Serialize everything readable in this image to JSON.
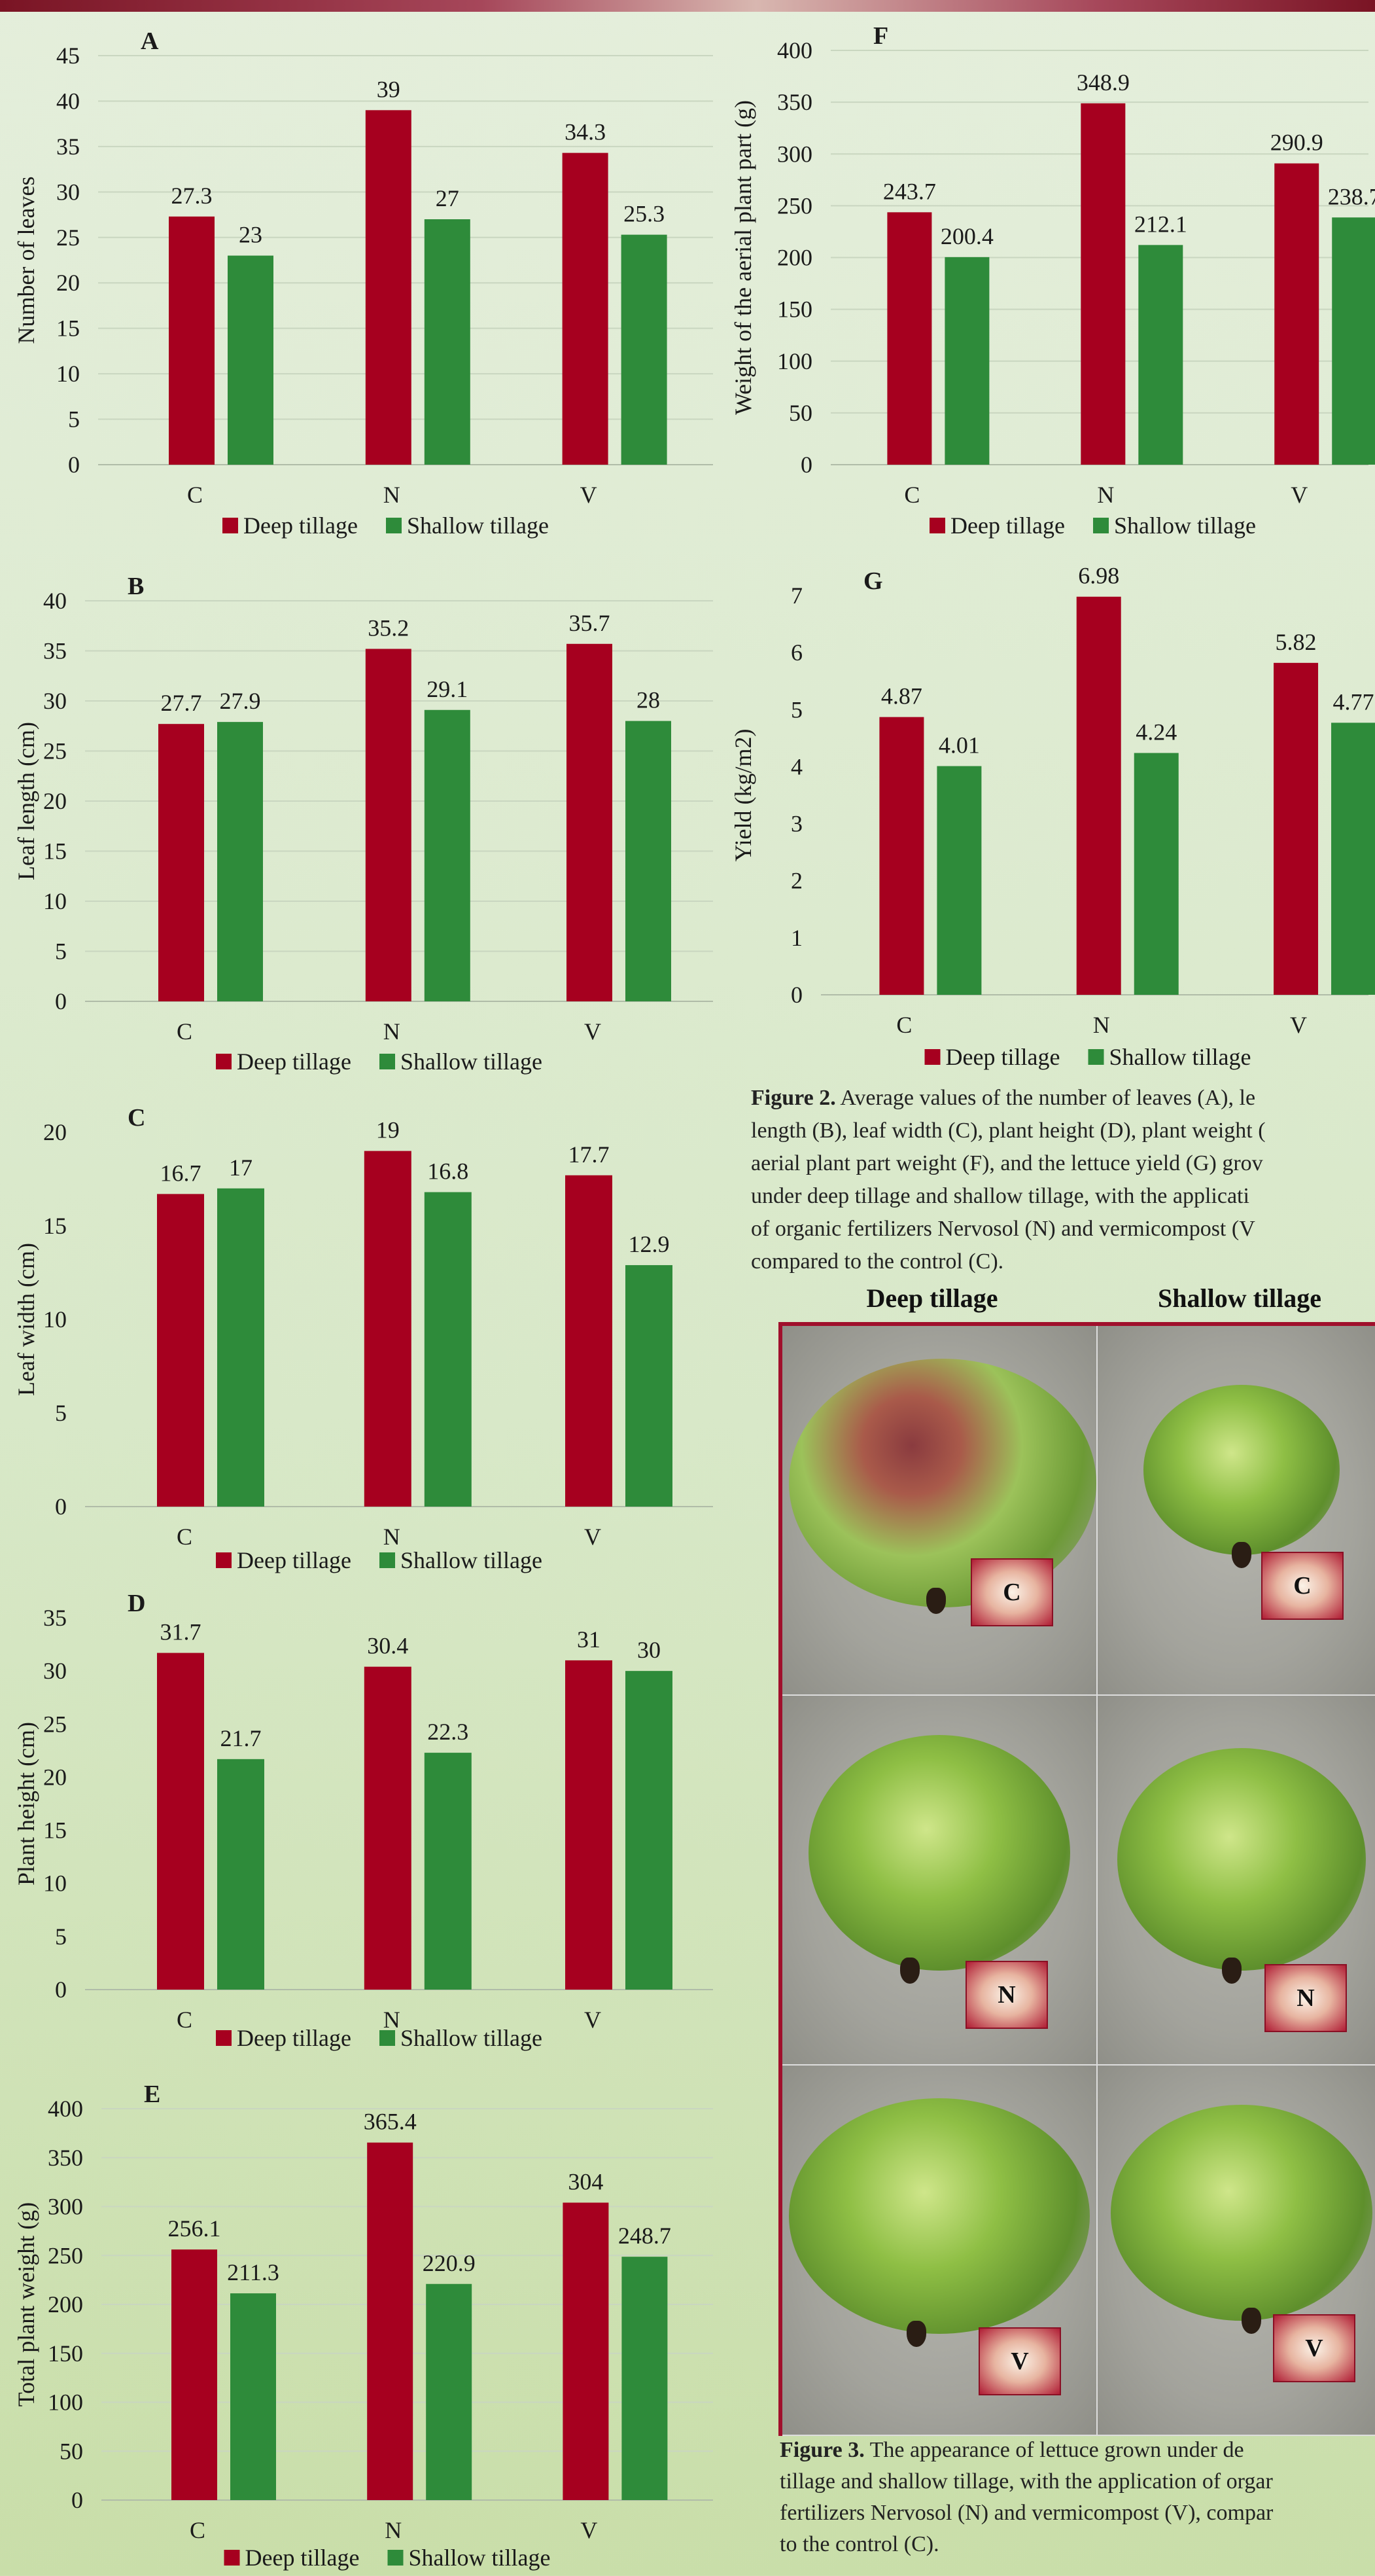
{
  "colors": {
    "deep": "#a6001f",
    "shallow": "#2e8b3a",
    "grid": "#c9d6c0"
  },
  "chart_data": [
    {
      "id": "A",
      "type": "bar",
      "panel_label": "A",
      "ylabel": "Number of leaves",
      "categories": [
        "C",
        "N",
        "V"
      ],
      "ylim": [
        0,
        45
      ],
      "yticks": [
        0,
        5,
        10,
        15,
        20,
        25,
        30,
        35,
        40,
        45
      ],
      "series": [
        {
          "name": "Deep tillage",
          "values": [
            27.3,
            39,
            34.3
          ],
          "labels": [
            "27.3",
            "39",
            "34.3"
          ]
        },
        {
          "name": "Shallow tillage",
          "values": [
            23,
            27,
            25.3
          ],
          "labels": [
            "23",
            "27",
            "25.3"
          ]
        }
      ],
      "grid": true,
      "legend": "bottom"
    },
    {
      "id": "B",
      "type": "bar",
      "panel_label": "B",
      "ylabel": "Leaf length (cm)",
      "categories": [
        "C",
        "N",
        "V"
      ],
      "ylim": [
        0,
        40
      ],
      "yticks": [
        0,
        5,
        10,
        15,
        20,
        25,
        30,
        35,
        40
      ],
      "series": [
        {
          "name": "Deep tillage",
          "values": [
            27.7,
            35.2,
            35.7
          ],
          "labels": [
            "27.7",
            "35.2",
            "35.7"
          ]
        },
        {
          "name": "Shallow tillage",
          "values": [
            27.9,
            29.1,
            28
          ],
          "labels": [
            "27.9",
            "29.1",
            "28"
          ]
        }
      ],
      "grid": true,
      "legend": "bottom"
    },
    {
      "id": "C",
      "type": "bar",
      "panel_label": "C",
      "ylabel": "Leaf width (cm)",
      "categories": [
        "C",
        "N",
        "V"
      ],
      "ylim": [
        0,
        20
      ],
      "yticks": [
        0,
        5,
        10,
        15,
        20
      ],
      "series": [
        {
          "name": "Deep tillage",
          "values": [
            16.7,
            19,
            17.7
          ],
          "labels": [
            "16.7",
            "19",
            "17.7"
          ]
        },
        {
          "name": "Shallow tillage",
          "values": [
            17,
            16.8,
            12.9
          ],
          "labels": [
            "17",
            "16.8",
            "12.9"
          ]
        }
      ],
      "grid": false,
      "legend": "bottom"
    },
    {
      "id": "D",
      "type": "bar",
      "panel_label": "D",
      "ylabel": "Plant height (cm)",
      "categories": [
        "C",
        "N",
        "V"
      ],
      "ylim": [
        0,
        35
      ],
      "yticks": [
        0,
        5,
        10,
        15,
        20,
        25,
        30,
        35
      ],
      "series": [
        {
          "name": "Deep tillage",
          "values": [
            31.7,
            30.4,
            31
          ],
          "labels": [
            "31.7",
            "30.4",
            "31"
          ]
        },
        {
          "name": "Shallow tillage",
          "values": [
            21.7,
            22.3,
            30
          ],
          "labels": [
            "21.7",
            "22.3",
            "30"
          ]
        }
      ],
      "grid": false,
      "legend": "bottom"
    },
    {
      "id": "E",
      "type": "bar",
      "panel_label": "E",
      "ylabel": "Total plant weight (g)",
      "categories": [
        "C",
        "N",
        "V"
      ],
      "ylim": [
        0,
        400
      ],
      "yticks": [
        0,
        50,
        100,
        150,
        200,
        250,
        300,
        350,
        400
      ],
      "series": [
        {
          "name": "Deep tillage",
          "values": [
            256.1,
            365.4,
            304
          ],
          "labels": [
            "256.1",
            "365.4",
            "304"
          ]
        },
        {
          "name": "Shallow tillage",
          "values": [
            211.3,
            220.9,
            248.7
          ],
          "labels": [
            "211.3",
            "220.9",
            "248.7"
          ]
        }
      ],
      "grid": true,
      "legend": "bottom"
    },
    {
      "id": "F",
      "type": "bar",
      "panel_label": "F",
      "ylabel": "Weight of the aerial plant part (g)",
      "categories": [
        "C",
        "N",
        "V"
      ],
      "ylim": [
        0,
        400
      ],
      "yticks": [
        0,
        50,
        100,
        150,
        200,
        250,
        300,
        350,
        400
      ],
      "series": [
        {
          "name": "Deep tillage",
          "values": [
            243.7,
            348.9,
            290.9
          ],
          "labels": [
            "243.7",
            "348.9",
            "290.9"
          ]
        },
        {
          "name": "Shallow tillage",
          "values": [
            200.4,
            212.1,
            238.7
          ],
          "labels": [
            "200.4",
            "212.1",
            "238.7"
          ]
        }
      ],
      "grid": true,
      "legend": "bottom"
    },
    {
      "id": "G",
      "type": "bar",
      "panel_label": "G",
      "ylabel": "Yield (kg/m2)",
      "categories": [
        "C",
        "N",
        "V"
      ],
      "ylim": [
        0,
        7
      ],
      "yticks": [
        0,
        1,
        2,
        3,
        4,
        5,
        6,
        7
      ],
      "series": [
        {
          "name": "Deep tillage",
          "values": [
            4.87,
            6.98,
            5.82
          ],
          "labels": [
            "4.87",
            "6.98",
            "5.82"
          ]
        },
        {
          "name": "Shallow tillage",
          "values": [
            4.01,
            4.24,
            4.77
          ],
          "labels": [
            "4.01",
            "4.24",
            "4.77"
          ]
        }
      ],
      "grid": false,
      "legend": "bottom"
    }
  ],
  "figure2_caption": {
    "label": "Figure 2.",
    "lines": [
      "Average values of the number of leaves (A), le",
      "length (B), leaf width (C), plant height (D), plant weight (",
      "aerial plant part weight (F), and the lettuce yield (G) grov",
      "under deep tillage and shallow tillage, with the applicati",
      "of organic fertilizers Nervosol (N) and vermicompost (V",
      "compared to the control (C)."
    ]
  },
  "photo_panel": {
    "col_deep": "Deep tillage",
    "col_shallow": "Shallow tillage",
    "badges": [
      "C",
      "C",
      "N",
      "N",
      "V",
      "V"
    ]
  },
  "figure3_caption": {
    "label": "Figure 3.",
    "lines": [
      "The appearance of lettuce grown under de",
      "tillage and shallow tillage, with the application of orgar",
      "fertilizers Nervosol (N) and vermicompost (V), compar",
      "to the control (C)."
    ]
  }
}
